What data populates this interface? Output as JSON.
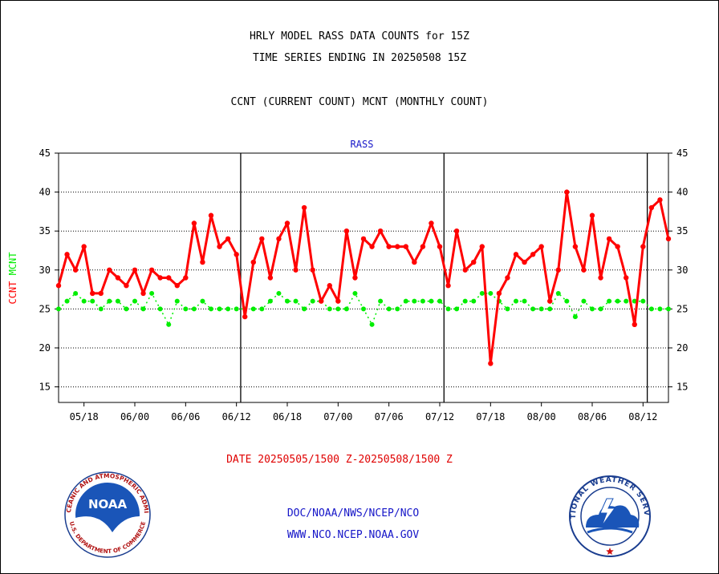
{
  "header": {
    "line1": "HRLY MODEL RASS DATA COUNTS for 15Z",
    "line2": "TIME SERIES ENDING IN 20250508 15Z",
    "line3": "CCNT (CURRENT COUNT) MCNT (MONTHLY COUNT)"
  },
  "chart_data": {
    "type": "line",
    "title": "RASS",
    "ylabel": "CCNT   MCNT",
    "ylim": [
      13,
      45
    ],
    "yticks": [
      15,
      20,
      25,
      30,
      35,
      40,
      45
    ],
    "grid": true,
    "x_tick_labels": [
      "05/18",
      "06/00",
      "06/06",
      "06/12",
      "06/18",
      "07/00",
      "07/06",
      "07/12",
      "07/18",
      "08/00",
      "08/06",
      "08/12"
    ],
    "day_boundaries_after_index": [
      21,
      45,
      69
    ],
    "series": [
      {
        "name": "CCNT",
        "color": "#ff0000",
        "values": [
          28,
          32,
          30,
          33,
          27,
          27,
          30,
          29,
          28,
          30,
          27,
          30,
          29,
          29,
          28,
          29,
          36,
          31,
          37,
          33,
          34,
          32,
          24,
          31,
          34,
          29,
          34,
          36,
          30,
          38,
          30,
          26,
          28,
          26,
          35,
          29,
          34,
          33,
          35,
          33,
          33,
          33,
          31,
          33,
          36,
          33,
          28,
          35,
          30,
          31,
          33,
          18,
          27,
          29,
          32,
          31,
          32,
          33,
          26,
          30,
          40,
          33,
          30,
          37,
          29,
          34,
          33,
          29,
          23,
          33,
          38,
          39,
          34
        ]
      },
      {
        "name": "MCNT",
        "color": "#00ee00",
        "values": [
          25,
          26,
          27,
          26,
          26,
          25,
          26,
          26,
          25,
          26,
          25,
          27,
          25,
          23,
          26,
          25,
          25,
          26,
          25,
          25,
          25,
          25,
          25,
          25,
          25,
          26,
          27,
          26,
          26,
          25,
          26,
          26,
          25,
          25,
          25,
          27,
          25,
          23,
          26,
          25,
          25,
          26,
          26,
          26,
          26,
          26,
          25,
          25,
          26,
          26,
          27,
          27,
          26,
          25,
          26,
          26,
          25,
          25,
          25,
          27,
          26,
          24,
          26,
          25,
          25,
          26,
          26,
          26,
          26,
          26,
          25,
          25,
          25
        ]
      }
    ]
  },
  "footer": {
    "date_range": "DATE 20250505/1500 Z-20250508/1500 Z",
    "org": "DOC/NOAA/NWS/NCEP/NCO",
    "url": "WWW.NCO.NCEP.NOAA.GOV"
  },
  "logos": {
    "noaa_text": "NOAA",
    "noaa_ring": "NATIONAL OCEANIC AND ATMOSPHERIC ADMINISTRATION",
    "noaa_ring_bottom": "U.S. DEPARTMENT OF COMMERCE",
    "nws_ring": "NATIONAL WEATHER SERVICE"
  },
  "colors": {
    "ccnt": "#ff0000",
    "mcnt": "#00ee00",
    "blue_text": "#1515c8",
    "red_text": "#e00000"
  }
}
